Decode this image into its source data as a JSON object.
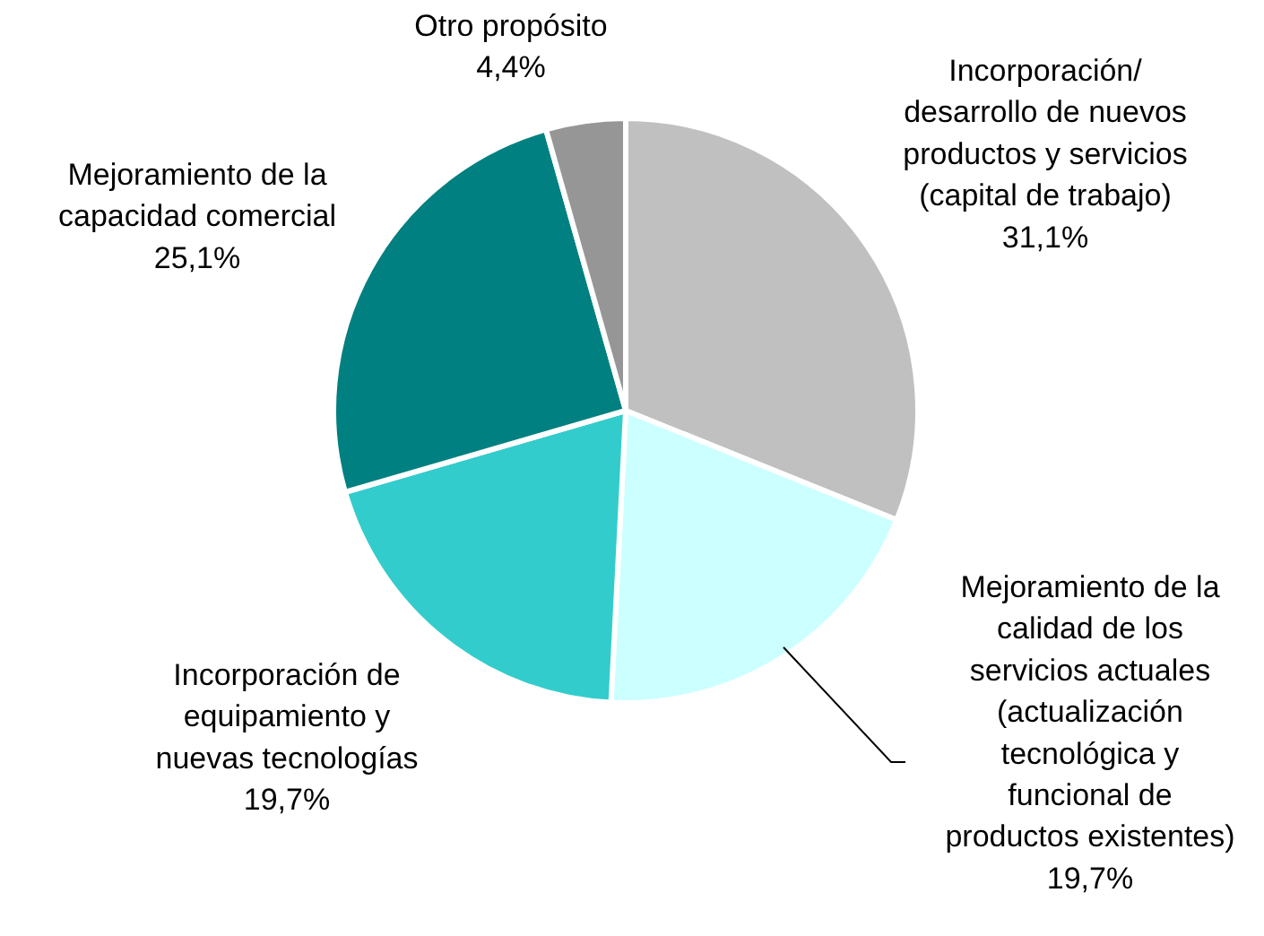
{
  "chart_data": {
    "type": "pie",
    "categories": [
      "Incorporación/ desarrollo de nuevos productos y servicios (capital de trabajo)",
      "Mejoramiento de la calidad de los servicios actuales (actualización tecnológica y funcional de productos existentes)",
      "Incorporación de equipamiento y nuevas tecnologías",
      "Mejoramiento de la capacidad comercial",
      "Otro propósito"
    ],
    "values": [
      31.1,
      19.7,
      19.7,
      25.1,
      4.4
    ],
    "value_labels": [
      "31,1%",
      "19,7%",
      "19,7%",
      "25,1%",
      "4,4%"
    ],
    "colors": [
      "#c0c0c0",
      "#ccffff",
      "#33cccc",
      "#008080",
      "#969696"
    ]
  }
}
